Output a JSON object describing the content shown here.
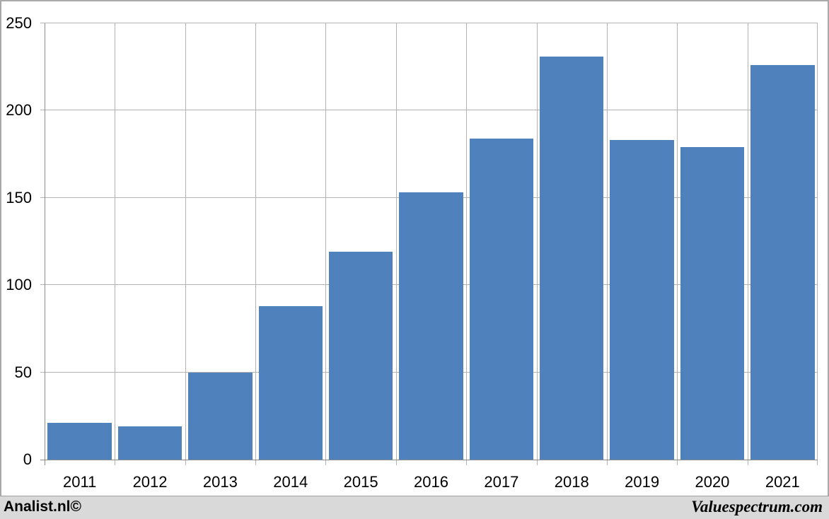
{
  "chart_data": {
    "type": "bar",
    "title": "",
    "xlabel": "",
    "ylabel": "",
    "categories": [
      "2011",
      "2012",
      "2013",
      "2014",
      "2015",
      "2016",
      "2017",
      "2018",
      "2019",
      "2020",
      "2021"
    ],
    "values": [
      21,
      19,
      50,
      88,
      119,
      153,
      184,
      231,
      183,
      179,
      226
    ],
    "ylim": [
      0,
      250
    ],
    "yticks": [
      0,
      50,
      100,
      150,
      200,
      250
    ],
    "grid": true,
    "legend": false,
    "bar_color": "#4f81bd",
    "bar_gap_ratio": 0.09
  },
  "colors": {
    "plot_background": "#ffffff",
    "gridline": "#b3b3b3",
    "axis_line": "#8c8c8c",
    "frame_border": "#a9a9a9",
    "footer_background": "#d9d9d9",
    "text": "#000000"
  },
  "footer": {
    "left_text": "Analist.nl©",
    "right_text": "Valuespectrum.com"
  }
}
